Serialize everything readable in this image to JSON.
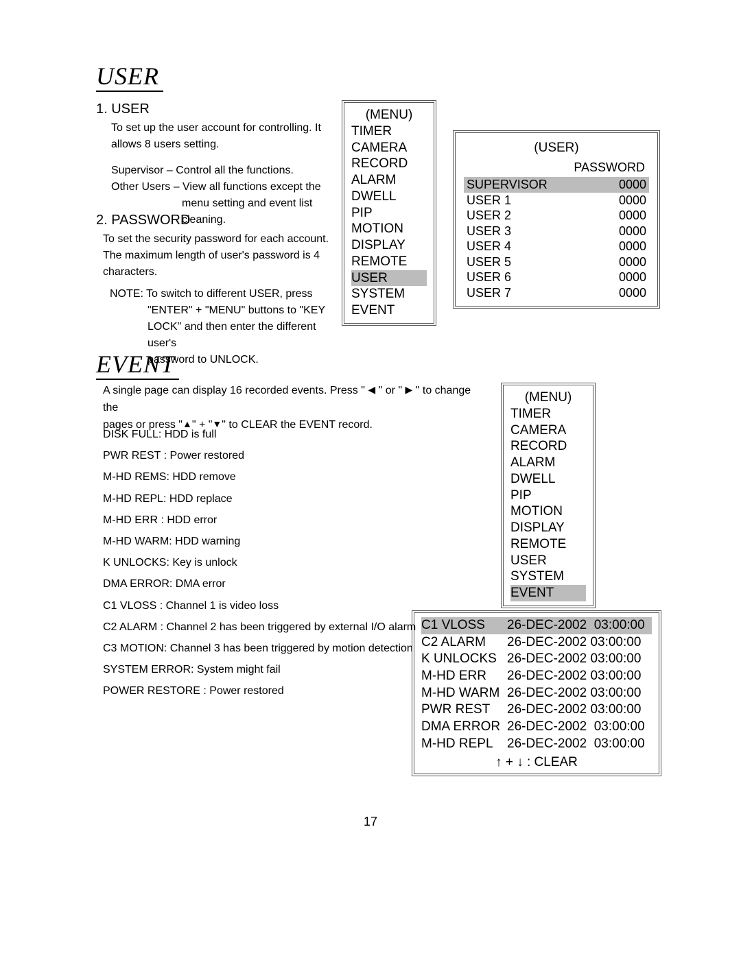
{
  "page_number": "17",
  "user_section": {
    "title": "USER",
    "item1": {
      "heading": "1. USER",
      "text": "To set up the user account for controlling. It allows 8 users setting.",
      "supervisor": "Supervisor – Control all the functions.",
      "other_label": "Other Users –",
      "other_text1": "View all functions except the",
      "other_text2": "menu setting and event list",
      "other_text3": "cleaning."
    },
    "item2": {
      "heading": "2. PASSWORD",
      "text": "To set the security password for each account. The maximum length of user's password is 4 characters.",
      "note1": "NOTE: To switch to different USER, press",
      "note2": "\"ENTER\" + \"MENU\" buttons to \"KEY",
      "note3": "LOCK\" and then enter the different user's",
      "note4": "password to UNLOCK."
    },
    "menu": {
      "title": "(MENU)",
      "items": [
        "TIMER",
        "CAMERA",
        "RECORD",
        "ALARM",
        "DWELL",
        "PIP",
        "MOTION",
        "DISPLAY",
        "REMOTE",
        "USER",
        "SYSTEM",
        "EVENT"
      ],
      "selected": "USER"
    },
    "user_panel": {
      "title": "(USER)",
      "pw_header": "PASSWORD",
      "rows": [
        {
          "name": "SUPERVISOR",
          "pw": "0000",
          "selected": true
        },
        {
          "name": "USER 1",
          "pw": "0000",
          "selected": false
        },
        {
          "name": "USER 2",
          "pw": "0000",
          "selected": false
        },
        {
          "name": "USER 3",
          "pw": "0000",
          "selected": false
        },
        {
          "name": "USER 4",
          "pw": "0000",
          "selected": false
        },
        {
          "name": "USER 5",
          "pw": "0000",
          "selected": false
        },
        {
          "name": "USER 6",
          "pw": "0000",
          "selected": false
        },
        {
          "name": "USER 7",
          "pw": "0000",
          "selected": false
        }
      ]
    }
  },
  "event_section": {
    "title": "EVENT",
    "intro_a": "A single page can display 16 recorded events. Press \" ",
    "intro_b": " \" or \" ",
    "intro_c": " \" to change the",
    "intro_line2a": "pages or press \"",
    "intro_line2b": "\" + \"",
    "intro_line2c": "\" to CLEAR the EVENT record.",
    "defs": [
      "DISK FULL: HDD is full",
      "PWR REST : Power restored",
      "M-HD REMS: HDD remove",
      "M-HD REPL: HDD replace",
      "M-HD ERR : HDD error",
      "M-HD WARM: HDD warning",
      "K UNLOCKS: Key is unlock",
      "DMA ERROR: DMA error",
      "C1 VLOSS : Channel 1 is video loss",
      "C2 ALARM : Channel 2 has been triggered by external I/O alarm",
      "C3 MOTION: Channel 3 has been triggered by motion detection",
      "SYSTEM ERROR: System might  fail",
      "POWER RESTORE : Power restored"
    ],
    "menu": {
      "title": "(MENU)",
      "items": [
        "TIMER",
        "CAMERA",
        "RECORD",
        "ALARM",
        "DWELL",
        "PIP",
        "MOTION",
        "DISPLAY",
        "REMOTE",
        "USER",
        "SYSTEM",
        "EVENT"
      ],
      "selected": "EVENT"
    },
    "event_log": {
      "rows": [
        {
          "name": "C1 VLOSS",
          "ts": "26-DEC-2002  03:00:00",
          "selected": true
        },
        {
          "name": "C2 ALARM",
          "ts": "26-DEC-2002 03:00:00",
          "selected": false
        },
        {
          "name": "K UNLOCKS",
          "ts": "26-DEC-2002 03:00:00",
          "selected": false
        },
        {
          "name": "M-HD ERR",
          "ts": "26-DEC-2002 03:00:00",
          "selected": false
        },
        {
          "name": "M-HD WARM",
          "ts": "26-DEC-2002 03:00:00",
          "selected": false
        },
        {
          "name": "PWR REST",
          "ts": "26-DEC-2002 03:00:00",
          "selected": false
        },
        {
          "name": "DMA ERROR",
          "ts": "26-DEC-2002  03:00:00",
          "selected": false
        },
        {
          "name": "M-HD REPL",
          "ts": "26-DEC-2002  03:00:00",
          "selected": false
        }
      ],
      "clear": "↑ + ↓ : CLEAR"
    }
  },
  "glyphs": {
    "left": "◀",
    "right": "▶",
    "up": "▲",
    "down": "▼"
  }
}
